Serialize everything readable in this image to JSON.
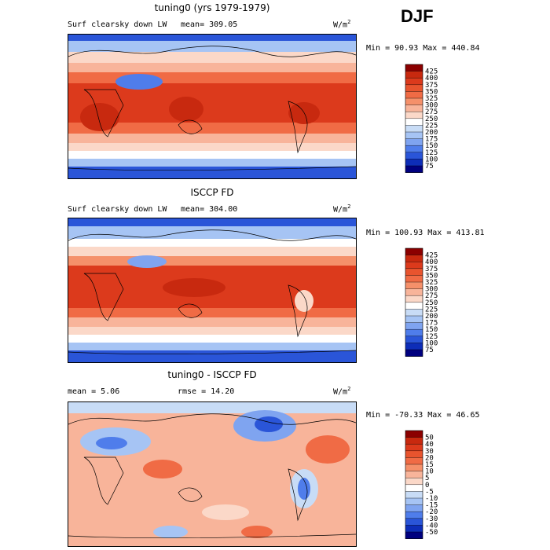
{
  "season": "DJF",
  "panels": [
    {
      "title": "tuning0 (yrs 1979-1979)",
      "field": "Surf clearsky down LW",
      "stat": "mean= 309.05",
      "units": "W/m",
      "units_sup": "2",
      "minmax": "Min =  90.93 Max = 440.84",
      "kind": "abs"
    },
    {
      "title": "ISCCP FD",
      "field": "Surf clearsky down LW",
      "stat": "mean= 304.00",
      "units": "W/m",
      "units_sup": "2",
      "minmax": "Min = 100.93 Max = 413.81",
      "kind": "abs"
    },
    {
      "title": "tuning0 - ISCCP FD",
      "field": "mean =   5.06",
      "stat": "rmse =  14.20",
      "units": "W/m",
      "units_sup": "2",
      "minmax": "Min = -70.33 Max =  46.65",
      "kind": "diff"
    }
  ],
  "colorbars": {
    "abs": {
      "levels": [
        "425",
        "400",
        "375",
        "350",
        "325",
        "300",
        "275",
        "250",
        "225",
        "200",
        "175",
        "150",
        "125",
        "100",
        "75"
      ],
      "colors": [
        "#8b0000",
        "#c8290f",
        "#dc3a1c",
        "#e8542e",
        "#f06b45",
        "#f5906a",
        "#f8b49a",
        "#fbd8c8",
        "#ffffff",
        "#c8dcf6",
        "#a6c4f4",
        "#7fa4f0",
        "#4f7deb",
        "#2a55d8",
        "#0d2db8",
        "#00007f"
      ]
    },
    "diff": {
      "levels": [
        "50",
        "40",
        "30",
        "20",
        "15",
        "10",
        "5",
        "0",
        "-5",
        "-10",
        "-15",
        "-20",
        "-30",
        "-40",
        "-50"
      ],
      "colors": [
        "#8b0000",
        "#c8290f",
        "#dc3a1c",
        "#e8542e",
        "#f06b45",
        "#f5906a",
        "#f8b49a",
        "#fbd8c8",
        "#ffffff",
        "#c8dcf6",
        "#a6c4f4",
        "#7fa4f0",
        "#4f7deb",
        "#2a55d8",
        "#0d2db8",
        "#00007f"
      ]
    }
  }
}
